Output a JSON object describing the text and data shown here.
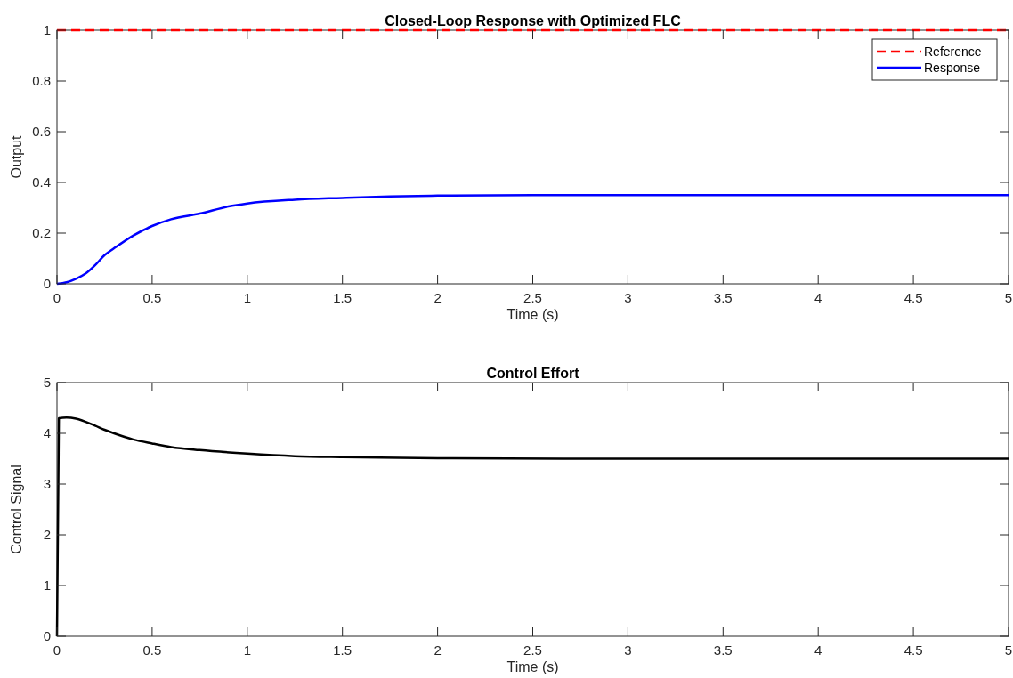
{
  "chart_data": [
    {
      "type": "line",
      "title": "Closed-Loop Response with Optimized FLC",
      "xlabel": "Time (s)",
      "ylabel": "Output",
      "xlim": [
        0,
        5
      ],
      "xticks": [
        0,
        0.5,
        1,
        1.5,
        2,
        2.5,
        3,
        3.5,
        4,
        4.5,
        5
      ],
      "ylim": [
        0,
        1
      ],
      "yticks": [
        0,
        0.2,
        0.4,
        0.6,
        0.8,
        1
      ],
      "grid": false,
      "legend": "top right",
      "series": [
        {
          "name": "Reference",
          "color": "#ff0000",
          "line_style": "dashed",
          "x": [
            0,
            5
          ],
          "values": [
            1,
            1
          ]
        },
        {
          "name": "Response",
          "color": "#0000ff",
          "line_style": "solid",
          "x": [
            0,
            0.05,
            0.1,
            0.15,
            0.2,
            0.25,
            0.3,
            0.4,
            0.5,
            0.6,
            0.75,
            0.9,
            1,
            1.25,
            1.5,
            1.75,
            2,
            2.5,
            3,
            4,
            5
          ],
          "values": [
            0,
            0.006,
            0.02,
            0.04,
            0.073,
            0.113,
            0.14,
            0.19,
            0.228,
            0.255,
            0.277,
            0.305,
            0.317,
            0.332,
            0.339,
            0.345,
            0.348,
            0.35,
            0.35,
            0.35,
            0.35
          ]
        }
      ]
    },
    {
      "type": "line",
      "title": "Control Effort",
      "xlabel": "Time (s)",
      "ylabel": "Control Signal",
      "xlim": [
        0,
        5
      ],
      "xticks": [
        0,
        0.5,
        1,
        1.5,
        2,
        2.5,
        3,
        3.5,
        4,
        4.5,
        5
      ],
      "ylim": [
        0,
        5
      ],
      "yticks": [
        0,
        1,
        2,
        3,
        4,
        5
      ],
      "grid": false,
      "legend": false,
      "series": [
        {
          "color": "#000000",
          "line_style": "solid",
          "x": [
            0,
            0.01,
            0.05,
            0.1,
            0.2,
            0.25,
            0.3,
            0.4,
            0.5,
            0.6,
            0.75,
            1,
            1.25,
            1.5,
            2,
            3,
            4,
            5
          ],
          "values": [
            0,
            4.3,
            4.31,
            4.29,
            4.15,
            4.07,
            4.0,
            3.88,
            3.8,
            3.73,
            3.67,
            3.6,
            3.55,
            3.53,
            3.51,
            3.5,
            3.5,
            3.5
          ]
        }
      ]
    }
  ]
}
